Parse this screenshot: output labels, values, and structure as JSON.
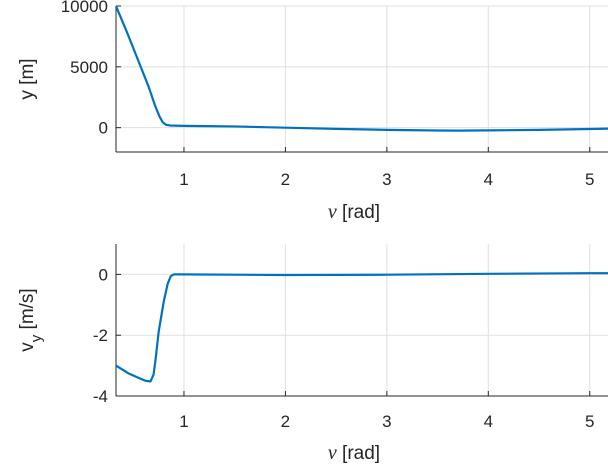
{
  "chart_data": [
    {
      "type": "line",
      "title": "",
      "xlabel_symbol": "ν",
      "xlabel": "[rad]",
      "ylabel": "y [m]",
      "xlim": [
        0.33,
        5.18
      ],
      "ylim": [
        -2000,
        10000
      ],
      "xticks": [
        1,
        2,
        3,
        4,
        5
      ],
      "yticks": [
        0,
        5000,
        10000
      ],
      "ytick_labels": [
        "0",
        "5000",
        "10000"
      ],
      "grid": true,
      "color": "#0072bd",
      "series": [
        {
          "x": [
            0.33,
            0.45,
            0.55,
            0.65,
            0.72,
            0.76,
            0.79,
            0.82,
            0.86,
            1.0,
            1.5,
            2.0,
            2.5,
            3.0,
            3.5,
            3.7,
            4.0,
            4.5,
            5.0,
            5.18
          ],
          "y": [
            10000,
            7600,
            5500,
            3400,
            1700,
            900,
            450,
            250,
            180,
            150,
            100,
            0,
            -100,
            -180,
            -230,
            -240,
            -225,
            -180,
            -110,
            -80
          ]
        }
      ]
    },
    {
      "type": "line",
      "title": "",
      "xlabel_symbol": "ν",
      "xlabel": "[rad]",
      "ylabel": "v_y [m/s]",
      "ylabel_main": "v",
      "ylabel_sub": "y",
      "ylabel_rest": " [m/s]",
      "xlim": [
        0.33,
        5.18
      ],
      "ylim": [
        -4,
        1
      ],
      "xticks": [
        1,
        2,
        3,
        4,
        5
      ],
      "yticks": [
        -4,
        -2,
        0
      ],
      "ytick_labels": [
        "-4",
        "-2",
        "0"
      ],
      "grid": true,
      "color": "#0072bd",
      "series": [
        {
          "x": [
            0.33,
            0.45,
            0.55,
            0.62,
            0.67,
            0.7,
            0.72,
            0.75,
            0.8,
            0.84,
            0.87,
            0.9,
            0.95,
            1.5,
            2.0,
            3.0,
            4.0,
            5.0,
            5.18
          ],
          "y": [
            -3.0,
            -3.25,
            -3.4,
            -3.5,
            -3.52,
            -3.3,
            -2.8,
            -1.9,
            -0.9,
            -0.3,
            -0.06,
            0.0,
            0.0,
            -0.01,
            -0.02,
            -0.01,
            0.02,
            0.04,
            0.04
          ]
        }
      ]
    }
  ]
}
